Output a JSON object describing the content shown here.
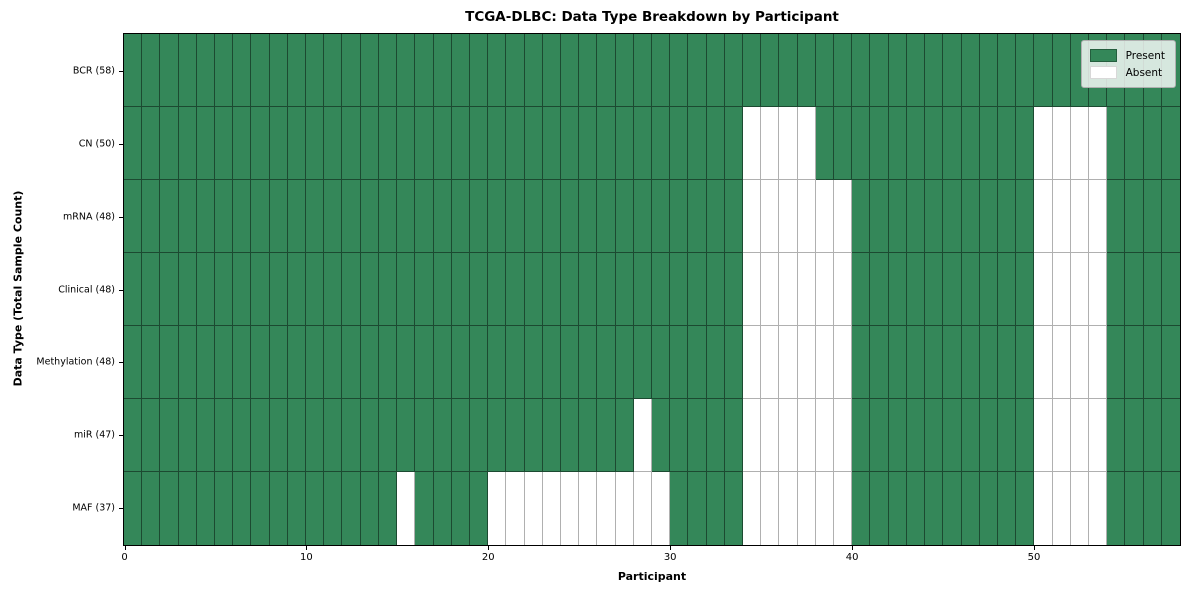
{
  "chart_data": {
    "type": "heatmap",
    "title": "TCGA-DLBC: Data Type Breakdown by Participant",
    "xlabel": "Participant",
    "ylabel": "Data Type (Total Sample Count)",
    "n_participants": 58,
    "x_range": [
      0,
      58
    ],
    "x_ticks": [
      0,
      10,
      20,
      30,
      40,
      50
    ],
    "grid": true,
    "legend_position": "upper right",
    "legend": [
      {
        "label": "Present",
        "color": "#348759"
      },
      {
        "label": "Absent",
        "color": "#ffffff"
      }
    ],
    "colors": {
      "present": "#348759",
      "absent": "#ffffff"
    },
    "rows": [
      {
        "label": "BCR (58)",
        "data_type": "BCR",
        "total_samples": 58,
        "absent_participants": []
      },
      {
        "label": "CN (50)",
        "data_type": "CN",
        "total_samples": 50,
        "absent_participants": [
          34,
          35,
          36,
          37,
          50,
          51,
          52,
          53
        ]
      },
      {
        "label": "mRNA (48)",
        "data_type": "mRNA",
        "total_samples": 48,
        "absent_participants": [
          34,
          35,
          36,
          37,
          38,
          39,
          50,
          51,
          52,
          53
        ]
      },
      {
        "label": "Clinical (48)",
        "data_type": "Clinical",
        "total_samples": 48,
        "absent_participants": [
          34,
          35,
          36,
          37,
          38,
          39,
          50,
          51,
          52,
          53
        ]
      },
      {
        "label": "Methylation (48)",
        "data_type": "Methylation",
        "total_samples": 48,
        "absent_participants": [
          34,
          35,
          36,
          37,
          38,
          39,
          50,
          51,
          52,
          53
        ]
      },
      {
        "label": "miR (47)",
        "data_type": "miR",
        "total_samples": 47,
        "absent_participants": [
          28,
          34,
          35,
          36,
          37,
          38,
          39,
          50,
          51,
          52,
          53
        ]
      },
      {
        "label": "MAF (37)",
        "data_type": "MAF",
        "total_samples": 37,
        "absent_participants": [
          15,
          20,
          21,
          22,
          23,
          24,
          25,
          26,
          27,
          28,
          29,
          34,
          35,
          36,
          37,
          38,
          39,
          50,
          51,
          52,
          53
        ]
      }
    ]
  }
}
